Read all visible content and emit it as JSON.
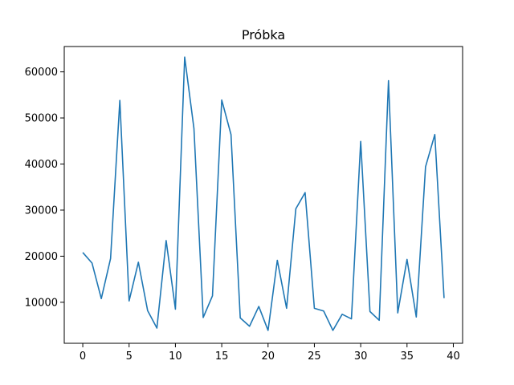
{
  "chart_data": {
    "type": "line",
    "title": "Próbka",
    "xlabel": "",
    "ylabel": "",
    "xlim": [
      -2,
      41
    ],
    "ylim": [
      1100,
      65500
    ],
    "xticks": [
      0,
      5,
      10,
      15,
      20,
      25,
      30,
      35,
      40
    ],
    "yticks": [
      10000,
      20000,
      30000,
      40000,
      50000,
      60000
    ],
    "grid": false,
    "series": [
      {
        "color": "#1f77b4",
        "x": [
          0,
          1,
          2,
          3,
          4,
          5,
          6,
          7,
          8,
          9,
          10,
          11,
          12,
          13,
          14,
          15,
          16,
          17,
          18,
          19,
          20,
          21,
          22,
          23,
          24,
          25,
          26,
          27,
          28,
          29,
          30,
          31,
          32,
          33,
          34,
          35,
          36,
          37,
          38,
          39
        ],
        "values": [
          20800,
          18500,
          10800,
          19500,
          53800,
          10300,
          18700,
          8200,
          4400,
          23400,
          8500,
          63200,
          47700,
          6700,
          11400,
          53900,
          46400,
          6600,
          4800,
          9100,
          3900,
          19100,
          8700,
          30300,
          33800,
          8700,
          8100,
          3900,
          7400,
          6400,
          44900,
          8000,
          6100,
          58100,
          7700,
          19300,
          6800,
          39400,
          46400,
          10900
        ]
      }
    ]
  }
}
